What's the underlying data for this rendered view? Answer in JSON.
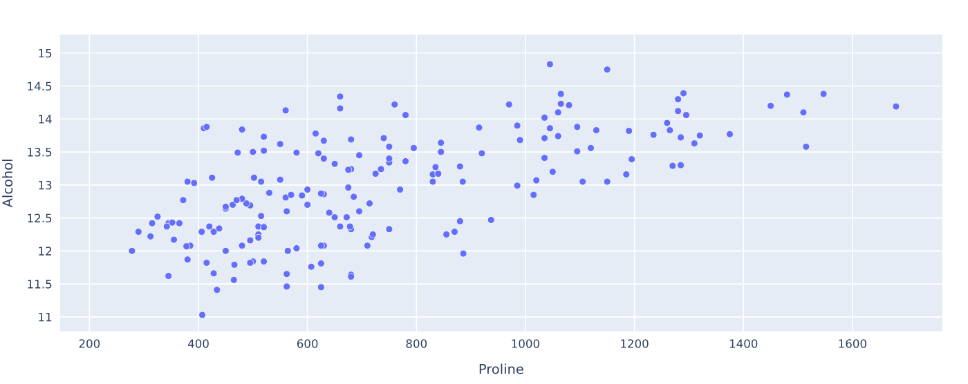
{
  "chart_data": {
    "type": "scatter",
    "xlabel": "Proline",
    "ylabel": "Alcohol",
    "xlim": [
      146,
      1765
    ],
    "ylim": [
      10.78,
      15.28
    ],
    "xticks": [
      200,
      400,
      600,
      800,
      1000,
      1200,
      1400,
      1600
    ],
    "yticks": [
      11,
      11.5,
      12,
      12.5,
      13,
      13.5,
      14,
      14.5,
      15
    ],
    "grid": true,
    "marker": "circle",
    "series": [
      {
        "color": "#636efa",
        "x": [
          1065,
          1050,
          1185,
          1480,
          735,
          1450,
          1290,
          1295,
          1045,
          1045,
          1510,
          1280,
          1320,
          1150,
          1547,
          1310,
          1280,
          1130,
          1680,
          845,
          780,
          770,
          1035,
          1015,
          845,
          830,
          1195,
          1285,
          915,
          1035,
          1285,
          1515,
          990,
          1235,
          1095,
          920,
          880,
          1105,
          1020,
          760,
          795,
          1035,
          1095,
          680,
          885,
          1080,
          1065,
          985,
          1060,
          1260,
          1150,
          1265,
          1190,
          1375,
          1060,
          1120,
          970,
          1270,
          1285,
          520,
          680,
          450,
          630,
          420,
          355,
          678,
          502,
          510,
          750,
          718,
          870,
          410,
          472,
          985,
          886,
          428,
          392,
          500,
          750,
          463,
          278,
          714,
          630,
          515,
          520,
          450,
          495,
          562,
          680,
          625,
          480,
          450,
          495,
          290,
          345,
          937,
          625,
          428,
          660,
          406,
          710,
          562,
          438,
          415,
          672,
          315,
          510,
          488,
          312,
          680,
          562,
          325,
          607,
          434,
          385,
          407,
          495,
          345,
          372,
          564,
          625,
          465,
          365,
          380,
          380,
          378,
          352,
          466,
          342,
          580,
          630,
          530,
          560,
          600,
          650,
          695,
          720,
          515,
          580,
          590,
          600,
          780,
          520,
          550,
          855,
          830,
          415,
          625,
          650,
          550,
          500,
          480,
          425,
          675,
          640,
          725,
          480,
          880,
          660,
          620,
          520,
          680,
          570,
          675,
          615,
          520,
          695,
          685,
          750,
          630,
          510,
          470,
          660,
          740,
          750,
          835,
          840,
          560
        ],
        "values": [
          14.23,
          13.2,
          13.16,
          14.37,
          13.24,
          14.2,
          14.39,
          14.06,
          14.83,
          13.86,
          14.1,
          14.12,
          13.75,
          14.75,
          14.38,
          13.63,
          14.3,
          13.83,
          14.19,
          13.64,
          14.06,
          12.93,
          13.71,
          12.85,
          13.5,
          13.05,
          13.39,
          13.3,
          13.87,
          14.02,
          13.73,
          13.58,
          13.68,
          13.76,
          13.51,
          13.48,
          13.28,
          13.05,
          13.07,
          14.22,
          13.56,
          13.41,
          13.88,
          13.24,
          13.05,
          14.21,
          14.38,
          13.9,
          14.1,
          13.94,
          13.05,
          13.83,
          13.82,
          13.77,
          13.74,
          13.56,
          14.22,
          13.29,
          13.72,
          12.37,
          12.33,
          12.64,
          13.67,
          12.37,
          12.17,
          12.37,
          13.11,
          12.37,
          13.34,
          12.21,
          12.29,
          13.86,
          13.49,
          12.99,
          11.96,
          11.66,
          13.03,
          11.84,
          12.33,
          12.7,
          12,
          12.72,
          12.08,
          13.05,
          11.84,
          12.67,
          12.16,
          11.65,
          11.64,
          12.08,
          12.08,
          12,
          12.69,
          12.29,
          11.62,
          12.47,
          11.81,
          12.29,
          12.37,
          12.29,
          12.08,
          12.6,
          12.34,
          11.82,
          12.51,
          12.42,
          12.25,
          12.72,
          12.22,
          11.61,
          11.46,
          12.52,
          11.76,
          11.41,
          12.08,
          11.03,
          11.82,
          12.42,
          12.77,
          12,
          11.45,
          11.56,
          12.42,
          13.05,
          11.87,
          12.07,
          12.43,
          11.79,
          12.37,
          12.04,
          12.86,
          12.88,
          12.81,
          12.7,
          12.51,
          12.6,
          12.25,
          12.53,
          13.49,
          12.84,
          12.93,
          13.36,
          13.52,
          13.62,
          12.25,
          13.16,
          13.88,
          12.87,
          13.32,
          13.08,
          13.5,
          12.79,
          13.11,
          13.23,
          12.58,
          13.17,
          13.84,
          12.45,
          14.34,
          13.48,
          12.36,
          13.69,
          12.85,
          12.96,
          13.78,
          13.73,
          13.45,
          12.82,
          13.58,
          13.4,
          12.2,
          12.77,
          14.16,
          13.71,
          13.4,
          13.27,
          13.17,
          14.13
        ]
      }
    ]
  }
}
